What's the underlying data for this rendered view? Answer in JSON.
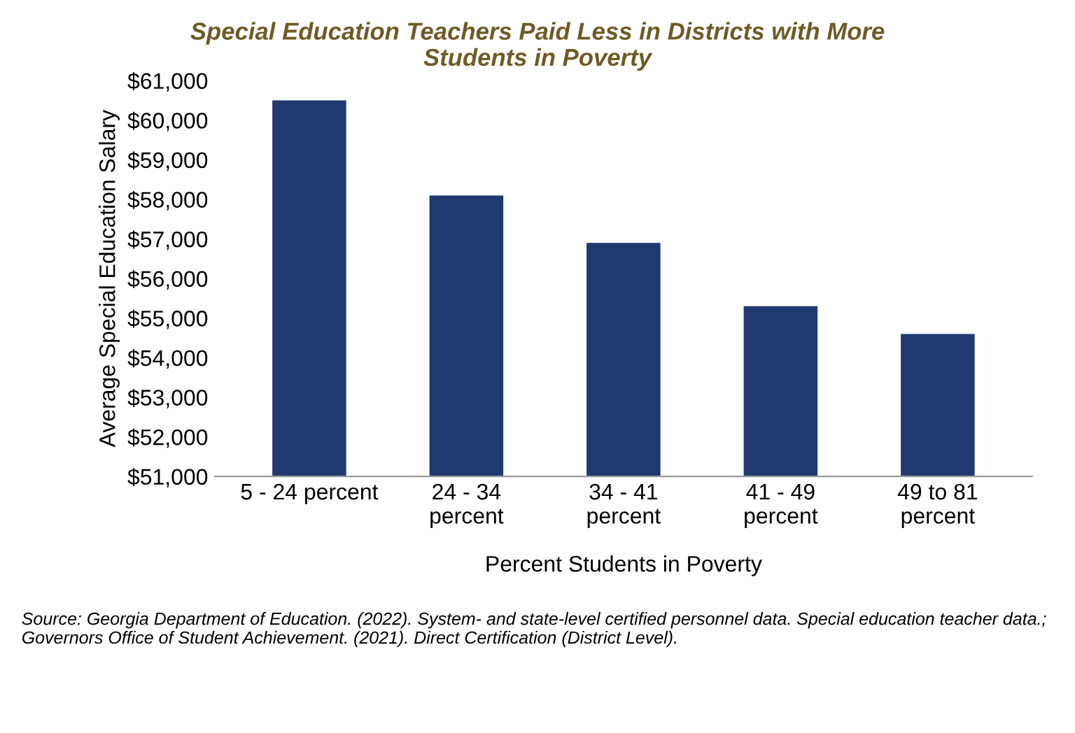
{
  "chart_data": {
    "type": "bar",
    "title": "Special Education Teachers Paid Less in Districts with More\nStudents in Poverty",
    "categories": [
      "5 - 24 percent",
      "24 - 34\npercent",
      "34 - 41\npercent",
      "41 - 49\npercent",
      "49 to 81\npercent"
    ],
    "values": [
      60500,
      58100,
      56900,
      55300,
      54600
    ],
    "color": "#203a70",
    "xlabel": "Percent Students in Poverty",
    "ylabel": "Average Special Education Salary",
    "ylim": [
      51000,
      61000
    ],
    "yticks": [
      {
        "value": 51000,
        "label": "$51,000"
      },
      {
        "value": 52000,
        "label": "$52,000"
      },
      {
        "value": 53000,
        "label": "$53,000"
      },
      {
        "value": 54000,
        "label": "$54,000"
      },
      {
        "value": 55000,
        "label": "$55,000"
      },
      {
        "value": 56000,
        "label": "$56,000"
      },
      {
        "value": 57000,
        "label": "$57,000"
      },
      {
        "value": 58000,
        "label": "$58,000"
      },
      {
        "value": 59000,
        "label": "$59,000"
      },
      {
        "value": 60000,
        "label": "$60,000"
      },
      {
        "value": 61000,
        "label": "$61,000"
      }
    ],
    "grid": false,
    "annotations": [
      "Source: Georgia Department of Education. (2022). System- and state-level certified personnel data. Special education teacher data.; Governors Office of Student Achievement. (2021). Direct Certification (District Level)."
    ]
  }
}
